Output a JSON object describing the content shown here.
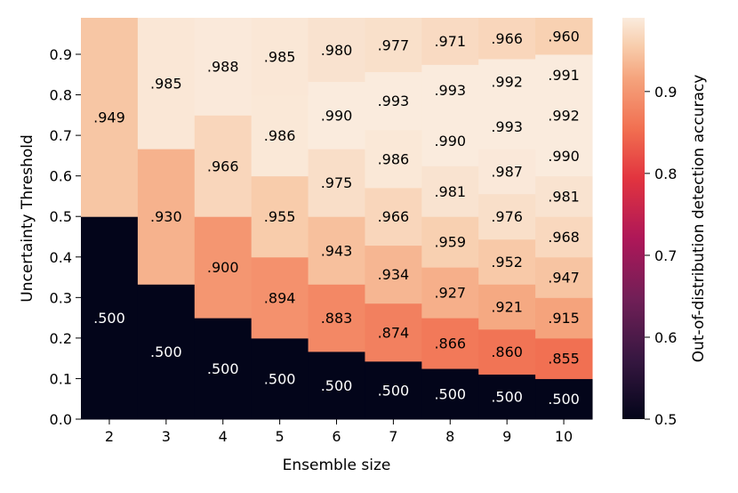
{
  "chart_data": {
    "type": "heatmap",
    "title": "",
    "xlabel": "Ensemble size",
    "ylabel": "Uncertainty Threshold",
    "colorbar_label": "Out-of-distribution detection accuracy",
    "x_categories": [
      "2",
      "3",
      "4",
      "5",
      "6",
      "7",
      "8",
      "9",
      "10"
    ],
    "ylim": [
      0.0,
      0.99
    ],
    "y_ticks": [
      "0.0",
      "0.1",
      "0.2",
      "0.3",
      "0.4",
      "0.5",
      "0.6",
      "0.7",
      "0.8",
      "0.9"
    ],
    "colorbar_range": [
      0.5,
      0.99
    ],
    "colorbar_ticks": [
      "0.5",
      "0.6",
      "0.7",
      "0.8",
      "0.9"
    ],
    "grid": false,
    "colormap": "rocket",
    "columns": [
      {
        "ensemble_size": "2",
        "regions": [
          {
            "y0": 0.0,
            "y1": 0.5,
            "value": 0.5,
            "label": ".500"
          },
          {
            "y0": 0.5,
            "y1": 0.99,
            "value": 0.949,
            "label": ".949"
          }
        ]
      },
      {
        "ensemble_size": "3",
        "regions": [
          {
            "y0": 0.0,
            "y1": 0.333,
            "value": 0.5,
            "label": ".500"
          },
          {
            "y0": 0.333,
            "y1": 0.667,
            "value": 0.93,
            "label": ".930"
          },
          {
            "y0": 0.667,
            "y1": 0.99,
            "value": 0.985,
            "label": ".985"
          }
        ]
      },
      {
        "ensemble_size": "4",
        "regions": [
          {
            "y0": 0.0,
            "y1": 0.25,
            "value": 0.5,
            "label": ".500"
          },
          {
            "y0": 0.25,
            "y1": 0.5,
            "value": 0.9,
            "label": ".900"
          },
          {
            "y0": 0.5,
            "y1": 0.75,
            "value": 0.966,
            "label": ".966"
          },
          {
            "y0": 0.75,
            "y1": 0.99,
            "value": 0.988,
            "label": ".988"
          }
        ]
      },
      {
        "ensemble_size": "5",
        "regions": [
          {
            "y0": 0.0,
            "y1": 0.2,
            "value": 0.5,
            "label": ".500"
          },
          {
            "y0": 0.2,
            "y1": 0.4,
            "value": 0.894,
            "label": ".894"
          },
          {
            "y0": 0.4,
            "y1": 0.6,
            "value": 0.955,
            "label": ".955"
          },
          {
            "y0": 0.6,
            "y1": 0.8,
            "value": 0.986,
            "label": ".986"
          },
          {
            "y0": 0.8,
            "y1": 0.99,
            "value": 0.985,
            "label": ".985"
          }
        ]
      },
      {
        "ensemble_size": "6",
        "regions": [
          {
            "y0": 0.0,
            "y1": 0.167,
            "value": 0.5,
            "label": ".500"
          },
          {
            "y0": 0.167,
            "y1": 0.333,
            "value": 0.883,
            "label": ".883"
          },
          {
            "y0": 0.333,
            "y1": 0.5,
            "value": 0.943,
            "label": ".943"
          },
          {
            "y0": 0.5,
            "y1": 0.667,
            "value": 0.975,
            "label": ".975"
          },
          {
            "y0": 0.667,
            "y1": 0.833,
            "value": 0.99,
            "label": ".990"
          },
          {
            "y0": 0.833,
            "y1": 0.99,
            "value": 0.98,
            "label": ".980"
          }
        ]
      },
      {
        "ensemble_size": "7",
        "regions": [
          {
            "y0": 0.0,
            "y1": 0.143,
            "value": 0.5,
            "label": ".500"
          },
          {
            "y0": 0.143,
            "y1": 0.286,
            "value": 0.874,
            "label": ".874"
          },
          {
            "y0": 0.286,
            "y1": 0.429,
            "value": 0.934,
            "label": ".934"
          },
          {
            "y0": 0.429,
            "y1": 0.571,
            "value": 0.966,
            "label": ".966"
          },
          {
            "y0": 0.571,
            "y1": 0.714,
            "value": 0.986,
            "label": ".986"
          },
          {
            "y0": 0.714,
            "y1": 0.857,
            "value": 0.993,
            "label": ".993"
          },
          {
            "y0": 0.857,
            "y1": 0.99,
            "value": 0.977,
            "label": ".977"
          }
        ]
      },
      {
        "ensemble_size": "8",
        "regions": [
          {
            "y0": 0.0,
            "y1": 0.125,
            "value": 0.5,
            "label": ".500"
          },
          {
            "y0": 0.125,
            "y1": 0.25,
            "value": 0.866,
            "label": ".866"
          },
          {
            "y0": 0.25,
            "y1": 0.375,
            "value": 0.927,
            "label": ".927"
          },
          {
            "y0": 0.375,
            "y1": 0.5,
            "value": 0.959,
            "label": ".959"
          },
          {
            "y0": 0.5,
            "y1": 0.625,
            "value": 0.981,
            "label": ".981"
          },
          {
            "y0": 0.625,
            "y1": 0.75,
            "value": 0.99,
            "label": ".990"
          },
          {
            "y0": 0.75,
            "y1": 0.875,
            "value": 0.993,
            "label": ".993"
          },
          {
            "y0": 0.875,
            "y1": 0.99,
            "value": 0.971,
            "label": ".971"
          }
        ]
      },
      {
        "ensemble_size": "9",
        "regions": [
          {
            "y0": 0.0,
            "y1": 0.111,
            "value": 0.5,
            "label": ".500"
          },
          {
            "y0": 0.111,
            "y1": 0.222,
            "value": 0.86,
            "label": ".860"
          },
          {
            "y0": 0.222,
            "y1": 0.333,
            "value": 0.921,
            "label": ".921"
          },
          {
            "y0": 0.333,
            "y1": 0.444,
            "value": 0.952,
            "label": ".952"
          },
          {
            "y0": 0.444,
            "y1": 0.556,
            "value": 0.976,
            "label": ".976"
          },
          {
            "y0": 0.556,
            "y1": 0.667,
            "value": 0.987,
            "label": ".987"
          },
          {
            "y0": 0.667,
            "y1": 0.778,
            "value": 0.993,
            "label": ".993"
          },
          {
            "y0": 0.778,
            "y1": 0.889,
            "value": 0.992,
            "label": ".992"
          },
          {
            "y0": 0.889,
            "y1": 0.99,
            "value": 0.966,
            "label": ".966"
          }
        ]
      },
      {
        "ensemble_size": "10",
        "regions": [
          {
            "y0": 0.0,
            "y1": 0.1,
            "value": 0.5,
            "label": ".500"
          },
          {
            "y0": 0.1,
            "y1": 0.2,
            "value": 0.855,
            "label": ".855"
          },
          {
            "y0": 0.2,
            "y1": 0.3,
            "value": 0.915,
            "label": ".915"
          },
          {
            "y0": 0.3,
            "y1": 0.4,
            "value": 0.947,
            "label": ".947"
          },
          {
            "y0": 0.4,
            "y1": 0.5,
            "value": 0.968,
            "label": ".968"
          },
          {
            "y0": 0.5,
            "y1": 0.6,
            "value": 0.981,
            "label": ".981"
          },
          {
            "y0": 0.6,
            "y1": 0.7,
            "value": 0.99,
            "label": ".990"
          },
          {
            "y0": 0.7,
            "y1": 0.8,
            "value": 0.992,
            "label": ".992"
          },
          {
            "y0": 0.8,
            "y1": 0.9,
            "value": 0.991,
            "label": ".991"
          },
          {
            "y0": 0.9,
            "y1": 0.99,
            "value": 0.96,
            "label": ".960"
          }
        ]
      }
    ]
  }
}
